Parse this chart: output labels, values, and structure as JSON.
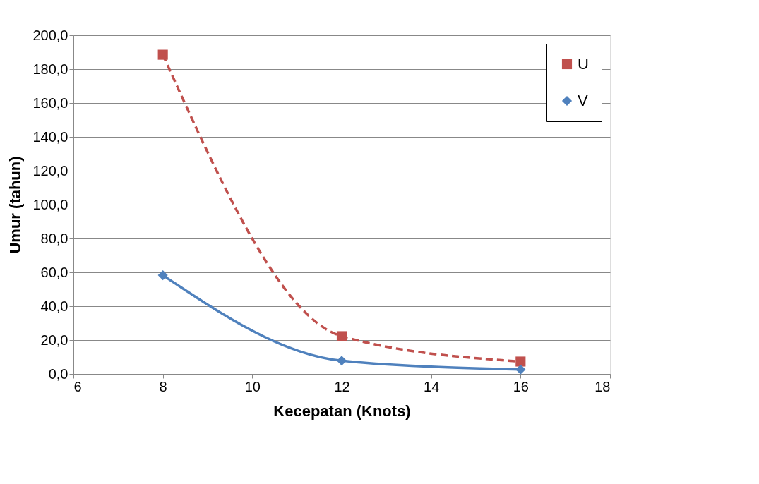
{
  "chart_data": {
    "type": "line",
    "xlabel": "Kecepatan (Knots)",
    "ylabel": "Umur (tahun)",
    "xlim": [
      6,
      18
    ],
    "xticks": [
      6,
      8,
      10,
      12,
      14,
      16,
      18
    ],
    "ylim": [
      0,
      200
    ],
    "yticks": [
      {
        "value": 0,
        "label": "0,0"
      },
      {
        "value": 20,
        "label": "20,0"
      },
      {
        "value": 40,
        "label": "40,0"
      },
      {
        "value": 60,
        "label": "60,0"
      },
      {
        "value": 80,
        "label": "80,0"
      },
      {
        "value": 100,
        "label": "100,0"
      },
      {
        "value": 120,
        "label": "120,0"
      },
      {
        "value": 140,
        "label": "140,0"
      },
      {
        "value": 160,
        "label": "160,0"
      },
      {
        "value": 180,
        "label": "180,0"
      },
      {
        "value": 200,
        "label": "200,0"
      }
    ],
    "grid": "y",
    "legend": "top right",
    "x": [
      8,
      12,
      16
    ],
    "series": [
      {
        "name": "U",
        "color": "#c0504d",
        "values": [
          188.5,
          22.3,
          7.3
        ],
        "marker": "square",
        "line_style": "dashed"
      },
      {
        "name": "V",
        "color": "#4f81bd",
        "values": [
          58.3,
          7.8,
          2.6
        ],
        "marker": "diamond",
        "line_style": "solid"
      }
    ]
  }
}
